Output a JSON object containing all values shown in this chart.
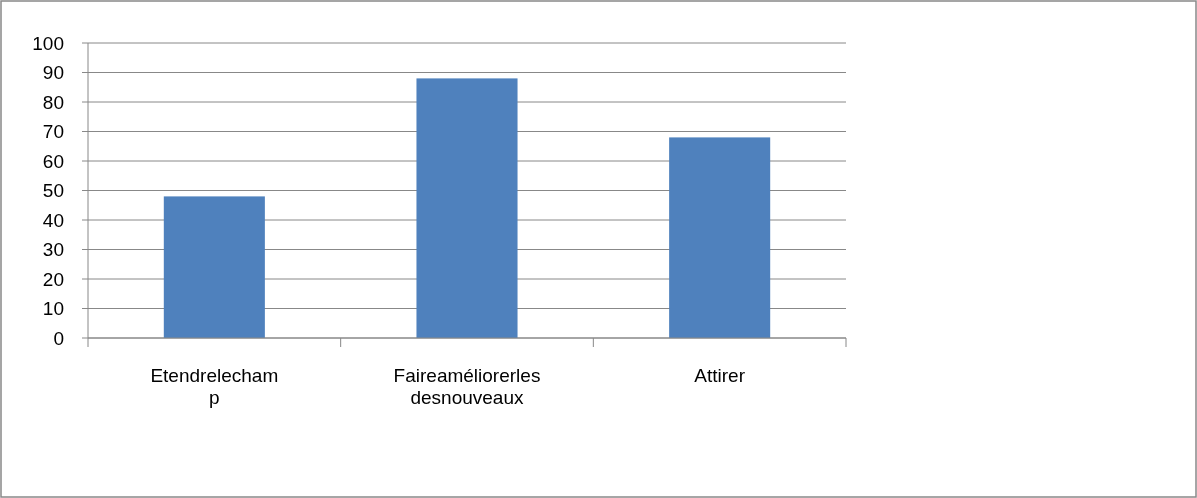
{
  "chart_data": {
    "type": "bar",
    "categories": [
      "Etendrelechamp",
      "Faireaméliorerles desnouveaux",
      "Attirer"
    ],
    "values": [
      48,
      88,
      68
    ],
    "color": "#4f81bd",
    "ylim": [
      0,
      100
    ],
    "yticks": [
      0,
      10,
      20,
      30,
      40,
      50,
      60,
      70,
      80,
      90,
      100
    ],
    "grid": "y"
  }
}
